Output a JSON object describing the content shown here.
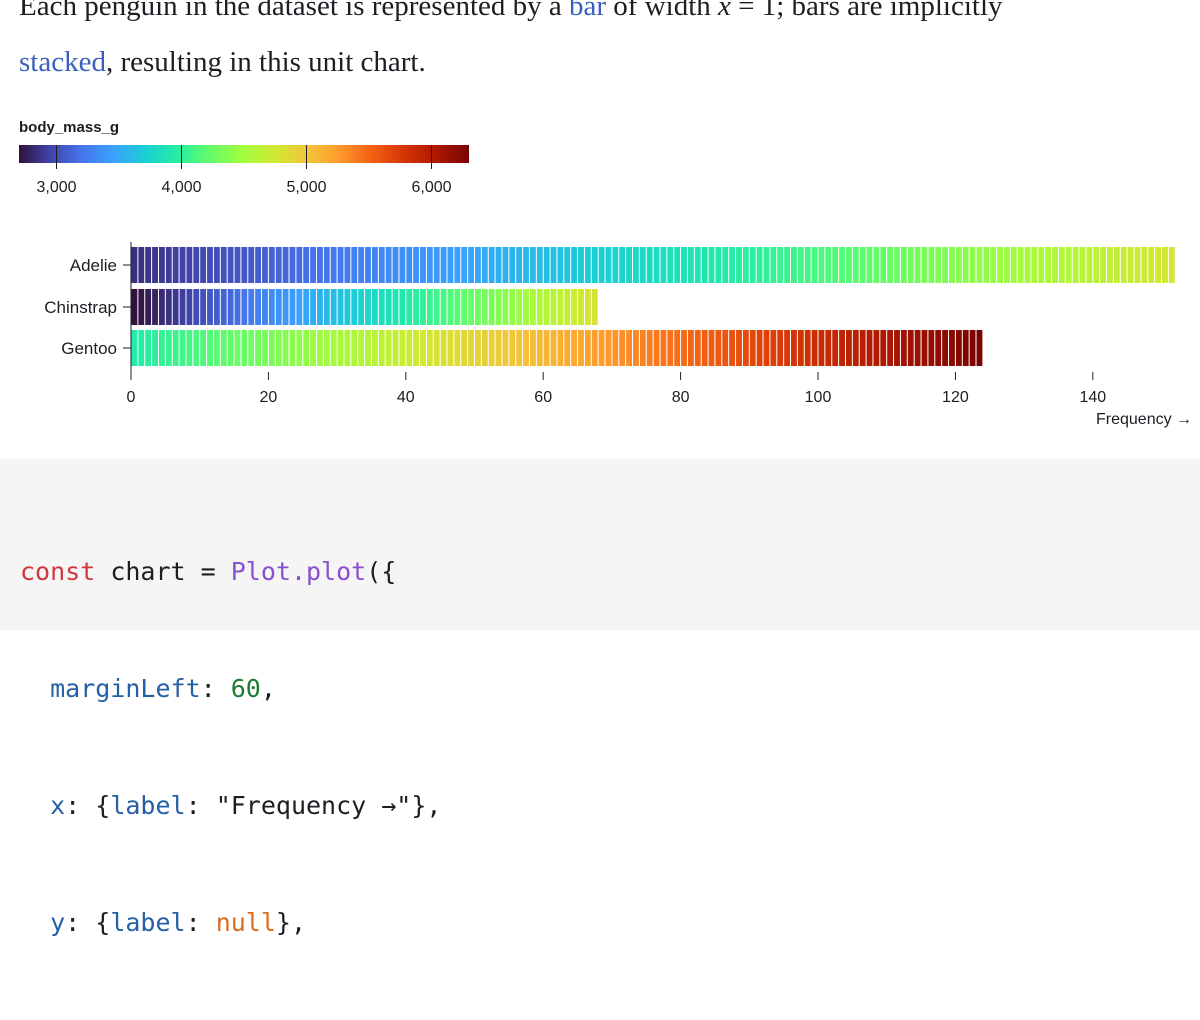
{
  "prose": {
    "line1_before": "Each penguin in the dataset is represented by a ",
    "link_bar": "bar",
    "line1_mid": " of width ",
    "math": "x",
    "line1_after": " = 1; bars are implicitly",
    "link_stacked": "stacked",
    "line2_after": ", resulting in this unit chart."
  },
  "legend": {
    "title": "body_mass_g",
    "ticks": [
      "3,000",
      "4,000",
      "5,000",
      "6,000"
    ],
    "tick_values": [
      3000,
      4000,
      5000,
      6000
    ],
    "domain": [
      2700,
      6300
    ]
  },
  "chart_data": {
    "type": "bar",
    "orientation": "horizontal",
    "stacked_units": true,
    "categories": [
      "Adelie",
      "Chinstrap",
      "Gentoo"
    ],
    "values": [
      152,
      68,
      124
    ],
    "xlabel": "Frequency →",
    "ylabel": null,
    "xlim": [
      0,
      152
    ],
    "x_ticks": [
      0,
      20,
      40,
      60,
      80,
      100,
      120,
      140
    ],
    "color_scheme": "turbo",
    "color_legend_title": "body_mass_g",
    "series": [
      {
        "name": "Adelie",
        "body_mass_range": [
          2850,
          4775
        ],
        "count": 152
      },
      {
        "name": "Chinstrap",
        "body_mass_range": [
          2700,
          4800
        ],
        "count": 68
      },
      {
        "name": "Gentoo",
        "body_mass_range": [
          3950,
          6300
        ],
        "count": 124
      }
    ]
  },
  "code": {
    "l1_kw": "const",
    "l1_var": " chart = ",
    "l1_fn": "Plot.plot",
    "l1_end": "({",
    "l2_prop": "  marginLeft",
    "l2_colon": ": ",
    "l2_num": "60",
    "l2_end": ",",
    "l3_prop": "  x",
    "l3_open": ": {",
    "l3_key": "label",
    "l3_colon": ": ",
    "l3_str": "\"Frequency →\"",
    "l3_end": "},",
    "l4_prop": "  y",
    "l4_open": ": {",
    "l4_key": "label",
    "l4_colon": ": ",
    "l4_null": "null",
    "l4_end": "},"
  }
}
